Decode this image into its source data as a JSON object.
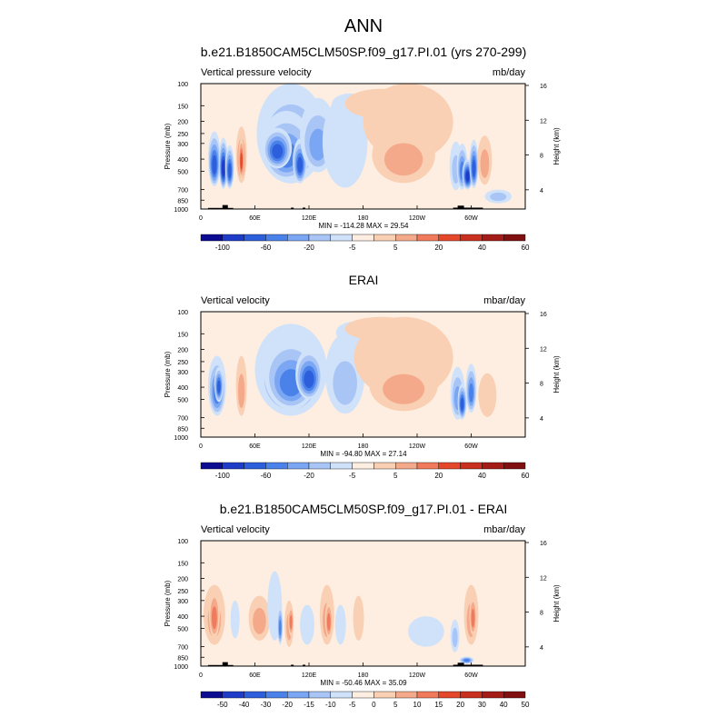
{
  "figure_title": "ANN",
  "chart_data": [
    {
      "type": "heatmap",
      "title": "b.e21.B1850CAM5CLM50SP.f09_g17.PI.01 (yrs 270-299)",
      "left_label": "Vertical pressure velocity",
      "units": "mb/day",
      "ylabel": "Pressure (mb)",
      "y2label": "Height (km)",
      "stats": "MIN = -114.28  MAX =  29.54",
      "xlim": [
        0,
        360
      ],
      "x_ticks": [
        {
          "v": 0,
          "l": "0"
        },
        {
          "v": 60,
          "l": "60E"
        },
        {
          "v": 120,
          "l": "120E"
        },
        {
          "v": 180,
          "l": "180"
        },
        {
          "v": 240,
          "l": "120W"
        },
        {
          "v": 300,
          "l": "60W"
        }
      ],
      "p_ticks": [
        {
          "p": 100,
          "l": "100"
        },
        {
          "p": 150,
          "l": "150"
        },
        {
          "p": 200,
          "l": "200"
        },
        {
          "p": 250,
          "l": "250"
        },
        {
          "p": 300,
          "l": "300"
        },
        {
          "p": 400,
          "l": "400"
        },
        {
          "p": 500,
          "l": "500"
        },
        {
          "p": 700,
          "l": "700"
        },
        {
          "p": 850,
          "l": "850"
        },
        {
          "p": 1000,
          "l": "1000"
        }
      ],
      "z_ticks": [
        {
          "z": 4,
          "l": "4"
        },
        {
          "z": 8,
          "l": "8"
        },
        {
          "z": 12,
          "l": "12"
        },
        {
          "z": 16,
          "l": "16"
        }
      ],
      "colorbar_colors": [
        "#0c0c92",
        "#1e3cc8",
        "#2d5fdc",
        "#4a82ea",
        "#7aa6f4",
        "#a9c5f5",
        "#cfe2fa",
        "#fdeee1",
        "#f9d0b4",
        "#f4a98a",
        "#f07a5b",
        "#e4472a",
        "#c9301f",
        "#a41c17",
        "#801010"
      ],
      "colorbar_labels": [
        "-100",
        "-60",
        "-20",
        "-5",
        "5",
        "20",
        "40",
        "60"
      ],
      "colorbar_label_pos": [
        1,
        3,
        5,
        7,
        9,
        11,
        13,
        15
      ],
      "background_level": 7,
      "blobs": [
        {
          "lon": 15,
          "p": 450,
          "w": 7,
          "h": 420,
          "level": 2
        },
        {
          "lon": 25,
          "p": 480,
          "w": 5,
          "h": 420,
          "level": 1
        },
        {
          "lon": 32,
          "p": 500,
          "w": 5,
          "h": 380,
          "level": 2
        },
        {
          "lon": 45,
          "p": 420,
          "w": 6,
          "h": 400,
          "level": 10
        },
        {
          "lon": 45,
          "p": 420,
          "w": 3,
          "h": 300,
          "level": 11
        },
        {
          "lon": 100,
          "p": 350,
          "w": 38,
          "h": 550,
          "level": 4
        },
        {
          "lon": 95,
          "p": 380,
          "w": 28,
          "h": 430,
          "level": 3
        },
        {
          "lon": 85,
          "p": 350,
          "w": 16,
          "h": 250,
          "level": 2
        },
        {
          "lon": 110,
          "p": 450,
          "w": 8,
          "h": 350,
          "level": 2
        },
        {
          "lon": 130,
          "p": 320,
          "w": 20,
          "h": 380,
          "level": 4
        },
        {
          "lon": 160,
          "p": 400,
          "w": 25,
          "h": 550,
          "level": 6
        },
        {
          "lon": 165,
          "p": 150,
          "w": 20,
          "h": 60,
          "level": 6
        },
        {
          "lon": 200,
          "p": 150,
          "w": 40,
          "h": 80,
          "level": 8
        },
        {
          "lon": 230,
          "p": 250,
          "w": 50,
          "h": 320,
          "level": 8
        },
        {
          "lon": 225,
          "p": 420,
          "w": 35,
          "h": 400,
          "level": 9
        },
        {
          "lon": 283,
          "p": 500,
          "w": 7,
          "h": 420,
          "level": 5
        },
        {
          "lon": 290,
          "p": 500,
          "w": 6,
          "h": 400,
          "level": 3
        },
        {
          "lon": 296,
          "p": 550,
          "w": 6,
          "h": 300,
          "level": 1
        },
        {
          "lon": 303,
          "p": 480,
          "w": 5,
          "h": 400,
          "level": 2
        },
        {
          "lon": 315,
          "p": 450,
          "w": 8,
          "h": 380,
          "level": 9
        },
        {
          "lon": 330,
          "p": 800,
          "w": 15,
          "h": 200,
          "level": 5
        }
      ],
      "topo": [
        {
          "lon0": 8,
          "lon1": 36,
          "p": 980
        },
        {
          "lon0": 24,
          "lon1": 30,
          "p": 930
        },
        {
          "lon0": 100,
          "lon1": 103,
          "p": 975
        },
        {
          "lon0": 113,
          "lon1": 116,
          "p": 975
        },
        {
          "lon0": 280,
          "lon1": 313,
          "p": 975
        },
        {
          "lon0": 285,
          "lon1": 292,
          "p": 940
        }
      ]
    },
    {
      "type": "heatmap",
      "title": "ERAI",
      "left_label": "Vertical velocity",
      "units": "mbar/day",
      "ylabel": "Pressure (mb)",
      "y2label": "Height (km)",
      "stats": "MIN = -94.80  MAX =  27.14",
      "xlim": [
        0,
        360
      ],
      "x_ticks": [
        {
          "v": 0,
          "l": "0"
        },
        {
          "v": 60,
          "l": "60E"
        },
        {
          "v": 120,
          "l": "120E"
        },
        {
          "v": 180,
          "l": "180"
        },
        {
          "v": 240,
          "l": "120W"
        },
        {
          "v": 300,
          "l": "60W"
        }
      ],
      "p_ticks": [
        {
          "p": 100,
          "l": "100"
        },
        {
          "p": 150,
          "l": "150"
        },
        {
          "p": 200,
          "l": "200"
        },
        {
          "p": 250,
          "l": "250"
        },
        {
          "p": 300,
          "l": "300"
        },
        {
          "p": 400,
          "l": "400"
        },
        {
          "p": 500,
          "l": "500"
        },
        {
          "p": 700,
          "l": "700"
        },
        {
          "p": 850,
          "l": "850"
        },
        {
          "p": 1000,
          "l": "1000"
        }
      ],
      "z_ticks": [
        {
          "z": 4,
          "l": "4"
        },
        {
          "z": 8,
          "l": "8"
        },
        {
          "z": 12,
          "l": "12"
        },
        {
          "z": 16,
          "l": "16"
        }
      ],
      "colorbar_colors": [
        "#0c0c92",
        "#1e3cc8",
        "#2d5fdc",
        "#4a82ea",
        "#7aa6f4",
        "#a9c5f5",
        "#cfe2fa",
        "#fdeee1",
        "#f9d0b4",
        "#f4a98a",
        "#f07a5b",
        "#e4472a",
        "#c9301f",
        "#a41c17",
        "#801010"
      ],
      "colorbar_labels": [
        "-100",
        "-60",
        "-20",
        "-5",
        "5",
        "20",
        "40",
        "60"
      ],
      "colorbar_label_pos": [
        1,
        3,
        5,
        7,
        9,
        11,
        13,
        15
      ],
      "background_level": 7,
      "blobs": [
        {
          "lon": 18,
          "p": 450,
          "w": 10,
          "h": 450,
          "level": 3
        },
        {
          "lon": 20,
          "p": 400,
          "w": 5,
          "h": 250,
          "level": 2
        },
        {
          "lon": 45,
          "p": 450,
          "w": 6,
          "h": 450,
          "level": 9
        },
        {
          "lon": 100,
          "p": 400,
          "w": 40,
          "h": 550,
          "level": 4
        },
        {
          "lon": 100,
          "p": 380,
          "w": 30,
          "h": 450,
          "level": 3
        },
        {
          "lon": 120,
          "p": 350,
          "w": 15,
          "h": 300,
          "level": 2
        },
        {
          "lon": 160,
          "p": 400,
          "w": 22,
          "h": 500,
          "level": 5
        },
        {
          "lon": 170,
          "p": 150,
          "w": 20,
          "h": 60,
          "level": 6
        },
        {
          "lon": 200,
          "p": 140,
          "w": 40,
          "h": 60,
          "level": 8
        },
        {
          "lon": 225,
          "p": 300,
          "w": 55,
          "h": 380,
          "level": 8
        },
        {
          "lon": 225,
          "p": 430,
          "w": 38,
          "h": 380,
          "level": 9
        },
        {
          "lon": 285,
          "p": 500,
          "w": 8,
          "h": 450,
          "level": 4
        },
        {
          "lon": 290,
          "p": 550,
          "w": 5,
          "h": 350,
          "level": 2
        },
        {
          "lon": 300,
          "p": 450,
          "w": 6,
          "h": 380,
          "level": 3
        },
        {
          "lon": 318,
          "p": 500,
          "w": 10,
          "h": 380,
          "level": 8
        }
      ],
      "topo": []
    },
    {
      "type": "heatmap",
      "title": "b.e21.B1850CAM5CLM50SP.f09_g17.PI.01 - ERAI",
      "left_label": "Vertical velocity",
      "units": "mbar/day",
      "ylabel": "Pressure (mb)",
      "y2label": "Height (km)",
      "stats": "MIN = -50.46  MAX =  35.09",
      "xlim": [
        0,
        360
      ],
      "x_ticks": [
        {
          "v": 0,
          "l": "0"
        },
        {
          "v": 60,
          "l": "60E"
        },
        {
          "v": 120,
          "l": "120E"
        },
        {
          "v": 180,
          "l": "180"
        },
        {
          "v": 240,
          "l": "120W"
        },
        {
          "v": 300,
          "l": "60W"
        }
      ],
      "p_ticks": [
        {
          "p": 100,
          "l": "100"
        },
        {
          "p": 150,
          "l": "150"
        },
        {
          "p": 200,
          "l": "200"
        },
        {
          "p": 250,
          "l": "250"
        },
        {
          "p": 300,
          "l": "300"
        },
        {
          "p": 400,
          "l": "400"
        },
        {
          "p": 500,
          "l": "500"
        },
        {
          "p": 700,
          "l": "700"
        },
        {
          "p": 850,
          "l": "850"
        },
        {
          "p": 1000,
          "l": "1000"
        }
      ],
      "z_ticks": [
        {
          "z": 4,
          "l": "4"
        },
        {
          "z": 8,
          "l": "8"
        },
        {
          "z": 12,
          "l": "12"
        },
        {
          "z": 16,
          "l": "16"
        }
      ],
      "colorbar_colors": [
        "#0c0c92",
        "#1e3cc8",
        "#2d5fdc",
        "#4a82ea",
        "#7aa6f4",
        "#a9c5f5",
        "#cfe2fa",
        "#fdeee1",
        "#f9d0b4",
        "#f4a98a",
        "#f07a5b",
        "#e4472a",
        "#c9301f",
        "#a41c17",
        "#801010"
      ],
      "colorbar_labels": [
        "-50",
        "-40",
        "-30",
        "-20",
        "-15",
        "-10",
        "-5",
        "0",
        "5",
        "10",
        "15",
        "20",
        "30",
        "40",
        "50"
      ],
      "colorbar_label_pos": [
        1,
        2,
        3,
        4,
        5,
        6,
        7,
        8,
        9,
        10,
        11,
        12,
        13,
        14,
        15
      ],
      "background_level": 7,
      "blobs": [
        {
          "lon": 15,
          "p": 450,
          "w": 12,
          "h": 450,
          "level": 9
        },
        {
          "lon": 15,
          "p": 420,
          "w": 6,
          "h": 360,
          "level": 10
        },
        {
          "lon": 38,
          "p": 450,
          "w": 5,
          "h": 300,
          "level": 6
        },
        {
          "lon": 65,
          "p": 450,
          "w": 12,
          "h": 350,
          "level": 9
        },
        {
          "lon": 82,
          "p": 400,
          "w": 8,
          "h": 450,
          "level": 6
        },
        {
          "lon": 88,
          "p": 500,
          "w": 3,
          "h": 350,
          "level": 3
        },
        {
          "lon": 98,
          "p": 500,
          "w": 5,
          "h": 400,
          "level": 9
        },
        {
          "lon": 100,
          "p": 450,
          "w": 3,
          "h": 250,
          "level": 10
        },
        {
          "lon": 118,
          "p": 500,
          "w": 8,
          "h": 350,
          "level": 6
        },
        {
          "lon": 140,
          "p": 450,
          "w": 8,
          "h": 450,
          "level": 9
        },
        {
          "lon": 142,
          "p": 450,
          "w": 4,
          "h": 300,
          "level": 10
        },
        {
          "lon": 155,
          "p": 500,
          "w": 6,
          "h": 350,
          "level": 6
        },
        {
          "lon": 175,
          "p": 450,
          "w": 6,
          "h": 350,
          "level": 8
        },
        {
          "lon": 250,
          "p": 550,
          "w": 20,
          "h": 300,
          "level": 6
        },
        {
          "lon": 282,
          "p": 600,
          "w": 5,
          "h": 350,
          "level": 5
        },
        {
          "lon": 300,
          "p": 450,
          "w": 8,
          "h": 450,
          "level": 9
        },
        {
          "lon": 302,
          "p": 420,
          "w": 4,
          "h": 300,
          "level": 10
        },
        {
          "lon": 295,
          "p": 900,
          "w": 8,
          "h": 120,
          "level": 3
        }
      ],
      "topo": [
        {
          "lon0": 8,
          "lon1": 36,
          "p": 980
        },
        {
          "lon0": 24,
          "lon1": 30,
          "p": 930
        },
        {
          "lon0": 100,
          "lon1": 103,
          "p": 975
        },
        {
          "lon0": 113,
          "lon1": 116,
          "p": 975
        },
        {
          "lon0": 280,
          "lon1": 313,
          "p": 975
        },
        {
          "lon0": 285,
          "lon1": 292,
          "p": 940
        }
      ]
    }
  ]
}
